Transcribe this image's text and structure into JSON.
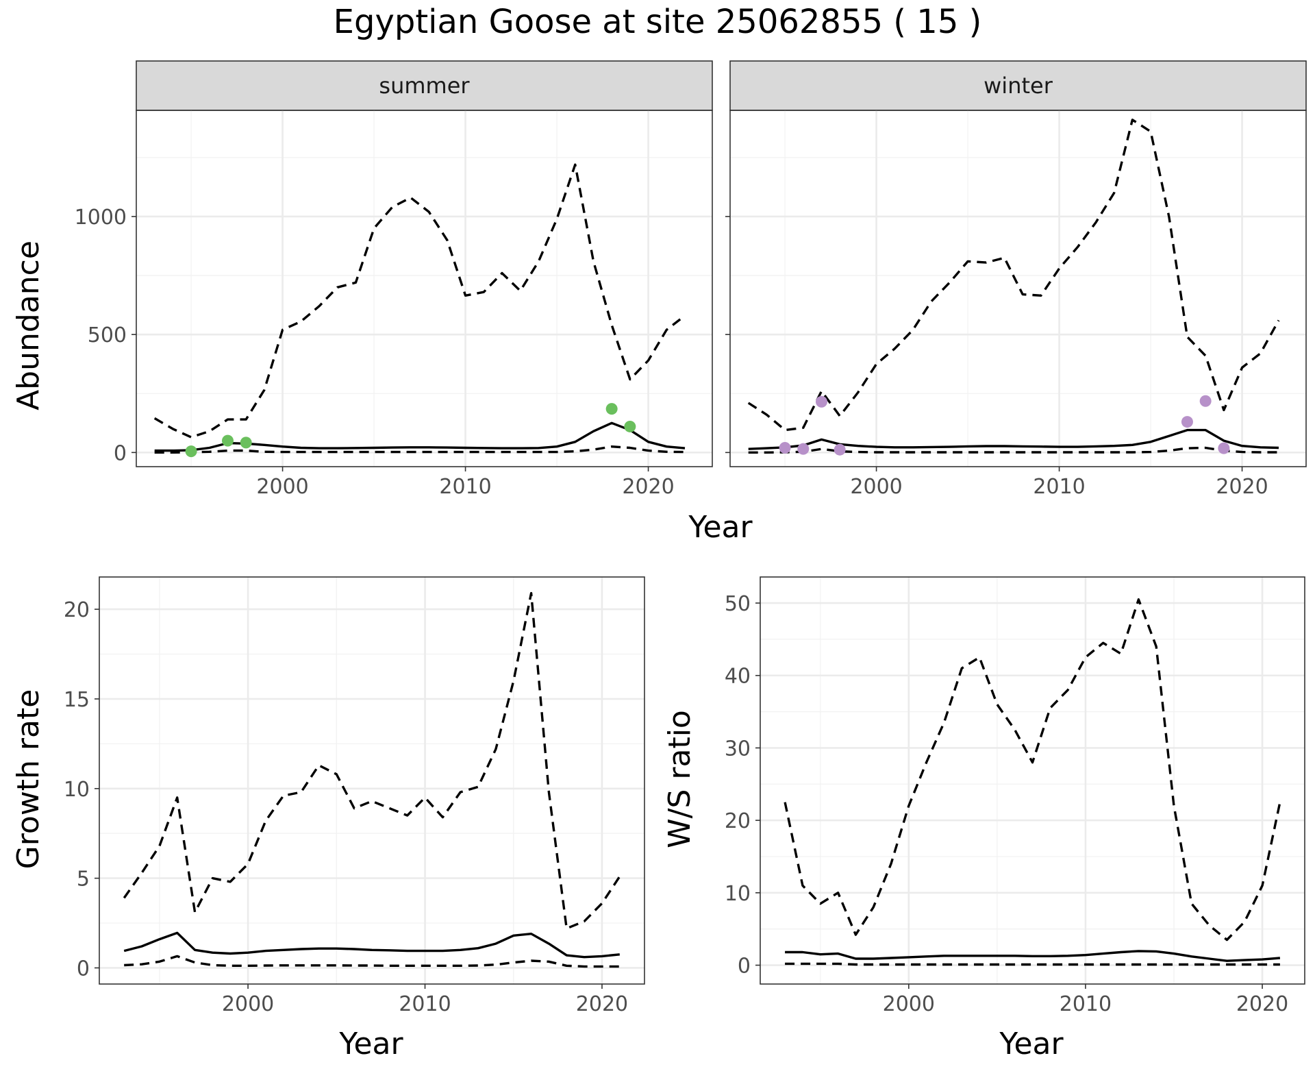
{
  "title": "Egyptian Goose at site 25062855 ( 15 )",
  "colors": {
    "summer_points": "#6abf5d",
    "winter_points": "#b791c9",
    "lines": "#000000"
  },
  "chart_data": [
    {
      "type": "line",
      "facet": "summer",
      "xlabel": "Year",
      "ylabel": "Abundance",
      "xlim": [
        1992,
        2023.5
      ],
      "ylim": [
        -60,
        1450
      ],
      "xticks": [
        2000,
        2010,
        2020
      ],
      "yticks": [
        0,
        500,
        1000
      ],
      "grid": true,
      "series": [
        {
          "style": "solid",
          "x": [
            1993,
            1994,
            1995,
            1996,
            1997,
            1998,
            1999,
            2000,
            2001,
            2002,
            2003,
            2004,
            2005,
            2006,
            2007,
            2008,
            2009,
            2010,
            2011,
            2012,
            2013,
            2014,
            2015,
            2016,
            2017,
            2018,
            2019,
            2020,
            2021,
            2022
          ],
          "values": [
            8,
            8,
            10,
            20,
            40,
            38,
            32,
            25,
            20,
            18,
            18,
            19,
            20,
            21,
            22,
            22,
            21,
            20,
            19,
            18,
            18,
            19,
            25,
            45,
            90,
            125,
            95,
            45,
            25,
            18
          ]
        },
        {
          "style": "dashed",
          "x": [
            1993,
            1994,
            1995,
            1996,
            1997,
            1998,
            1999,
            2000,
            2001,
            2002,
            2003,
            2004,
            2005,
            2006,
            2007,
            2008,
            2009,
            2010,
            2011,
            2012,
            2013,
            2014,
            2015,
            2016,
            2017,
            2018,
            2019,
            2020,
            2021,
            2022
          ],
          "values": [
            145,
            100,
            65,
            90,
            140,
            140,
            265,
            520,
            555,
            620,
            700,
            720,
            950,
            1040,
            1080,
            1020,
            900,
            665,
            680,
            760,
            685,
            810,
            990,
            1220,
            810,
            540,
            310,
            390,
            520,
            580
          ]
        },
        {
          "style": "dashed",
          "x": [
            1993,
            1994,
            1995,
            1996,
            1997,
            1998,
            1999,
            2000,
            2001,
            2002,
            2003,
            2004,
            2005,
            2006,
            2007,
            2008,
            2009,
            2010,
            2011,
            2012,
            2013,
            2014,
            2015,
            2016,
            2017,
            2018,
            2019,
            2020,
            2021,
            2022
          ],
          "values": [
            0,
            0,
            1,
            3,
            8,
            8,
            3,
            2,
            2,
            2,
            2,
            2,
            2,
            2,
            2,
            2,
            2,
            2,
            2,
            2,
            2,
            2,
            2,
            5,
            12,
            25,
            20,
            8,
            3,
            2
          ]
        }
      ],
      "points": {
        "x": [
          1995,
          1997,
          1998,
          2018,
          2019
        ],
        "y": [
          5,
          50,
          42,
          185,
          110
        ]
      }
    },
    {
      "type": "line",
      "facet": "winter",
      "xlabel": "Year",
      "ylabel": "Abundance",
      "xlim": [
        1992,
        2023.5
      ],
      "ylim": [
        -60,
        1450
      ],
      "xticks": [
        2000,
        2010,
        2020
      ],
      "yticks": [
        0,
        500,
        1000
      ],
      "grid": true,
      "series": [
        {
          "style": "solid",
          "x": [
            1993,
            1994,
            1995,
            1996,
            1997,
            1998,
            1999,
            2000,
            2001,
            2002,
            2003,
            2004,
            2005,
            2006,
            2007,
            2008,
            2009,
            2010,
            2011,
            2012,
            2013,
            2014,
            2015,
            2016,
            2017,
            2018,
            2019,
            2020,
            2021,
            2022
          ],
          "values": [
            15,
            18,
            22,
            30,
            55,
            35,
            28,
            24,
            22,
            22,
            23,
            24,
            26,
            27,
            27,
            26,
            25,
            24,
            24,
            26,
            28,
            32,
            45,
            70,
            95,
            95,
            50,
            28,
            22,
            20
          ]
        },
        {
          "style": "dashed",
          "x": [
            1993,
            1994,
            1995,
            1996,
            1997,
            1998,
            1999,
            2000,
            2001,
            2002,
            2003,
            2004,
            2005,
            2006,
            2007,
            2008,
            2009,
            2010,
            2011,
            2012,
            2013,
            2014,
            2015,
            2016,
            2017,
            2018,
            2019,
            2020,
            2021,
            2022
          ],
          "values": [
            210,
            160,
            95,
            105,
            260,
            155,
            255,
            375,
            440,
            520,
            640,
            720,
            810,
            805,
            825,
            670,
            665,
            780,
            870,
            975,
            1100,
            1410,
            1360,
            1000,
            490,
            410,
            180,
            360,
            420,
            560
          ]
        },
        {
          "style": "dashed",
          "x": [
            1993,
            1994,
            1995,
            1996,
            1997,
            1998,
            1999,
            2000,
            2001,
            2002,
            2003,
            2004,
            2005,
            2006,
            2007,
            2008,
            2009,
            2010,
            2011,
            2012,
            2013,
            2014,
            2015,
            2016,
            2017,
            2018,
            2019,
            2020,
            2021,
            2022
          ],
          "values": [
            0,
            0,
            1,
            3,
            15,
            5,
            2,
            1,
            1,
            1,
            1,
            1,
            1,
            1,
            1,
            1,
            1,
            1,
            1,
            1,
            1,
            1,
            2,
            8,
            18,
            20,
            8,
            2,
            1,
            1
          ]
        }
      ],
      "points": {
        "x": [
          1995,
          1996,
          1997,
          1998,
          2017,
          2018,
          2019
        ],
        "y": [
          20,
          15,
          215,
          12,
          130,
          218,
          18
        ]
      }
    },
    {
      "type": "line",
      "xlabel": "Year",
      "ylabel": "Growth rate",
      "xlim": [
        1991.6,
        2022.4
      ],
      "ylim": [
        -0.9,
        21.8
      ],
      "xticks": [
        2000,
        2010,
        2020
      ],
      "yticks": [
        0,
        5,
        10,
        15,
        20
      ],
      "grid": true,
      "series": [
        {
          "style": "solid",
          "x": [
            1993,
            1994,
            1995,
            1996,
            1997,
            1998,
            1999,
            2000,
            2001,
            2002,
            2003,
            2004,
            2005,
            2006,
            2007,
            2008,
            2009,
            2010,
            2011,
            2012,
            2013,
            2014,
            2015,
            2016,
            2017,
            2018,
            2019,
            2020,
            2021
          ],
          "values": [
            0.95,
            1.2,
            1.6,
            1.95,
            1.0,
            0.85,
            0.8,
            0.85,
            0.95,
            1.0,
            1.05,
            1.08,
            1.08,
            1.05,
            1.0,
            0.98,
            0.95,
            0.95,
            0.95,
            1.0,
            1.1,
            1.35,
            1.8,
            1.9,
            1.35,
            0.7,
            0.6,
            0.65,
            0.75
          ]
        },
        {
          "style": "dashed",
          "x": [
            1993,
            1994,
            1995,
            1996,
            1997,
            1998,
            1999,
            2000,
            2001,
            2002,
            2003,
            2004,
            2005,
            2006,
            2007,
            2008,
            2009,
            2010,
            2011,
            2012,
            2013,
            2014,
            2015,
            2016,
            2017,
            2018,
            2019,
            2020,
            2021
          ],
          "values": [
            3.9,
            5.3,
            6.8,
            9.5,
            3.1,
            5.0,
            4.8,
            5.8,
            8.2,
            9.6,
            9.8,
            11.3,
            10.8,
            8.9,
            9.3,
            8.9,
            8.5,
            9.5,
            8.4,
            9.8,
            10.1,
            12.2,
            16.0,
            20.9,
            9.8,
            2.2,
            2.6,
            3.6,
            5.1
          ]
        },
        {
          "style": "dashed",
          "x": [
            1993,
            1994,
            1995,
            1996,
            1997,
            1998,
            1999,
            2000,
            2001,
            2002,
            2003,
            2004,
            2005,
            2006,
            2007,
            2008,
            2009,
            2010,
            2011,
            2012,
            2013,
            2014,
            2015,
            2016,
            2017,
            2018,
            2019,
            2020,
            2021
          ],
          "values": [
            0.15,
            0.2,
            0.35,
            0.65,
            0.3,
            0.15,
            0.12,
            0.12,
            0.13,
            0.14,
            0.14,
            0.14,
            0.14,
            0.13,
            0.13,
            0.12,
            0.12,
            0.12,
            0.12,
            0.12,
            0.13,
            0.18,
            0.3,
            0.4,
            0.35,
            0.12,
            0.08,
            0.08,
            0.08
          ]
        }
      ]
    },
    {
      "type": "line",
      "xlabel": "Year",
      "ylabel": "W/S ratio",
      "xlim": [
        1991.6,
        2022.4
      ],
      "ylim": [
        -2.6,
        53.6
      ],
      "xticks": [
        2000,
        2010,
        2020
      ],
      "yticks": [
        0,
        10,
        20,
        30,
        40,
        50
      ],
      "grid": true,
      "series": [
        {
          "style": "solid",
          "x": [
            1993,
            1994,
            1995,
            1996,
            1997,
            1998,
            1999,
            2000,
            2001,
            2002,
            2003,
            2004,
            2005,
            2006,
            2007,
            2008,
            2009,
            2010,
            2011,
            2012,
            2013,
            2014,
            2015,
            2016,
            2017,
            2018,
            2019,
            2020,
            2021
          ],
          "values": [
            1.8,
            1.8,
            1.5,
            1.6,
            0.9,
            0.9,
            1.0,
            1.1,
            1.2,
            1.3,
            1.3,
            1.3,
            1.3,
            1.3,
            1.25,
            1.25,
            1.3,
            1.4,
            1.6,
            1.8,
            1.95,
            1.9,
            1.6,
            1.2,
            0.9,
            0.6,
            0.7,
            0.8,
            1.0
          ]
        },
        {
          "style": "dashed",
          "x": [
            1993,
            1994,
            1995,
            1996,
            1997,
            1998,
            1999,
            2000,
            2001,
            2002,
            2003,
            2004,
            2005,
            2006,
            2007,
            2008,
            2009,
            2010,
            2011,
            2012,
            2013,
            2014,
            2015,
            2016,
            2017,
            2018,
            2019,
            2020,
            2021
          ],
          "values": [
            22.5,
            11.0,
            8.5,
            10.0,
            4.2,
            8.0,
            14.0,
            22.0,
            28.0,
            33.5,
            41.0,
            42.5,
            36.0,
            32.5,
            28.0,
            35.5,
            38.0,
            42.5,
            44.5,
            43.0,
            50.5,
            44.0,
            22.0,
            8.5,
            5.5,
            3.5,
            6.0,
            11.0,
            22.5
          ]
        },
        {
          "style": "dashed",
          "x": [
            1993,
            1994,
            1995,
            1996,
            1997,
            1998,
            1999,
            2000,
            2001,
            2002,
            2003,
            2004,
            2005,
            2006,
            2007,
            2008,
            2009,
            2010,
            2011,
            2012,
            2013,
            2014,
            2015,
            2016,
            2017,
            2018,
            2019,
            2020,
            2021
          ],
          "values": [
            0.2,
            0.2,
            0.2,
            0.2,
            0.1,
            0.1,
            0.1,
            0.1,
            0.1,
            0.1,
            0.1,
            0.1,
            0.1,
            0.1,
            0.1,
            0.1,
            0.1,
            0.1,
            0.1,
            0.1,
            0.1,
            0.1,
            0.1,
            0.1,
            0.1,
            0.1,
            0.1,
            0.1,
            0.1
          ]
        }
      ]
    }
  ]
}
